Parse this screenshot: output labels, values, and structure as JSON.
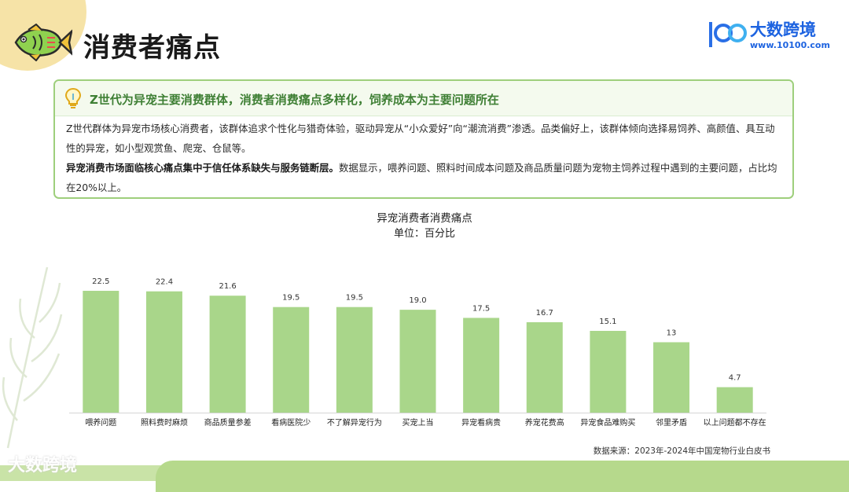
{
  "header": {
    "title": "消费者痛点",
    "brand_name": "大数跨境",
    "brand_url": "www.10100.com",
    "brand_logo_text": "100"
  },
  "summary": {
    "headline": "Z世代为异宠主要消费群体，消费者消费痛点多样化，饲养成本为主要问题所在",
    "paragraph1": "Z世代群体为异宠市场核心消费者，该群体追求个性化与猎奇体验，驱动异宠从“小众爱好”向“潮流消费”渗透。品类偏好上，该群体倾向选择易饲养、高颜值、具互动性的异宠，如小型观赏鱼、爬宠、仓鼠等。",
    "paragraph2_bold": "异宠消费市场面临核心痛点集中于信任体系缺失与服务链断层。",
    "paragraph2_rest": "数据显示，喂养问题、照料时间成本问题及商品质量问题为宠物主饲养过程中遇到的主要问题，占比均在20%以上。"
  },
  "chart_data": {
    "type": "bar",
    "title": "异宠消费者消费痛点",
    "subtitle": "单位：百分比",
    "categories": [
      "喂养问题",
      "照料费时麻烦",
      "商品质量参差",
      "看病医院少",
      "不了解异宠行为",
      "买宠上当",
      "异宠看病贵",
      "养宠花费高",
      "异宠食品难购买",
      "邻里矛盾",
      "以上问题都不存在"
    ],
    "values": [
      22.5,
      22.4,
      21.6,
      19.5,
      19.5,
      19.0,
      17.5,
      16.7,
      15.1,
      13,
      4.7
    ],
    "value_labels": [
      "22.5",
      "22.4",
      "21.6",
      "19.5",
      "19.5",
      "19.0",
      "17.5",
      "16.7",
      "15.1",
      "13",
      "4.7"
    ],
    "ylim": [
      0,
      25
    ],
    "grid": false,
    "bar_color": "#a9d68a"
  },
  "source_note": "数据来源：2023年-2024年中国宠物行业白皮书",
  "footer": {
    "watermark": "大数跨境"
  },
  "colors": {
    "accent_green": "#9ecf7c",
    "brand_blue": "#1d63e0",
    "headline_green": "#3e7f34"
  }
}
